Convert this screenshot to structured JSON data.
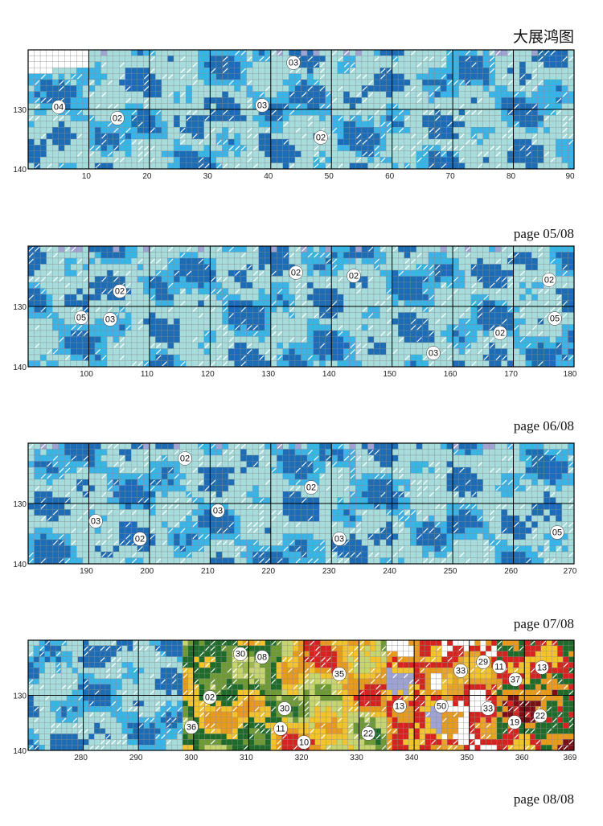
{
  "title": "大展鸿图",
  "panels": [
    {
      "page": "page 05/08",
      "row_labels": [
        "130",
        "140"
      ],
      "col_labels": [
        "10",
        "20",
        "30",
        "40",
        "50",
        "60",
        "70",
        "80",
        "90"
      ],
      "markers": [
        "03",
        "04",
        "03",
        "02",
        "02"
      ]
    },
    {
      "page": "page 06/08",
      "row_labels": [
        "130",
        "140"
      ],
      "col_labels": [
        "100",
        "110",
        "120",
        "130",
        "140",
        "150",
        "160",
        "170",
        "180"
      ],
      "markers": [
        "02",
        "02",
        "02",
        "02",
        "05",
        "03",
        "05",
        "02",
        "03"
      ]
    },
    {
      "page": "page 07/08",
      "row_labels": [
        "130",
        "140"
      ],
      "col_labels": [
        "190",
        "200",
        "210",
        "220",
        "230",
        "240",
        "250",
        "260",
        "270"
      ],
      "markers": [
        "02",
        "02",
        "03",
        "03",
        "02",
        "03",
        "05"
      ]
    },
    {
      "page": "page 08/08",
      "row_labels": [
        "130",
        "140"
      ],
      "col_labels": [
        "280",
        "290",
        "300",
        "310",
        "320",
        "330",
        "340",
        "350",
        "360",
        "369"
      ],
      "markers": [
        "30",
        "08",
        "33",
        "29",
        "11",
        "13",
        "35",
        "37",
        "02",
        "30",
        "50",
        "13",
        "33",
        "22",
        "19",
        "36",
        "11",
        "22",
        "10"
      ]
    }
  ]
}
